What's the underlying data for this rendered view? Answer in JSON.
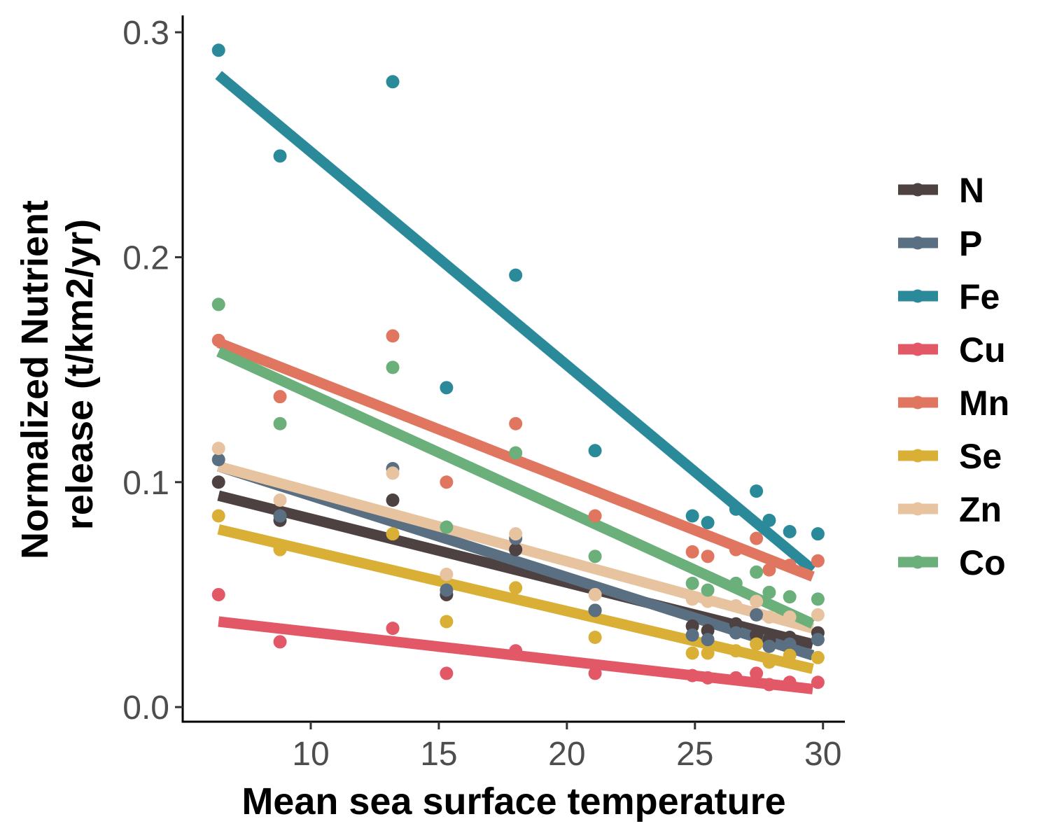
{
  "chart_data": {
    "type": "scatter",
    "xlabel": "Mean sea surface temperature",
    "ylabel_lines": [
      "Normalized Nutrient",
      "release (t/km2/yr)"
    ],
    "xlim": [
      5.0,
      30.8
    ],
    "ylim": [
      -0.0065,
      0.3075
    ],
    "xticks": [
      10,
      15,
      20,
      25,
      30
    ],
    "yticks": [
      0.0,
      0.1,
      0.2,
      0.3
    ],
    "xtick_labels": [
      "10",
      "15",
      "20",
      "25",
      "30"
    ],
    "ytick_labels": [
      "0.0",
      "0.1",
      "0.2",
      "0.3"
    ],
    "grid": false,
    "legend_position": "right",
    "x": [
      6.4,
      8.8,
      13.2,
      15.3,
      18.0,
      21.1,
      24.9,
      25.5,
      26.6,
      27.4,
      27.9,
      28.7,
      29.8
    ],
    "series": [
      {
        "name": "N",
        "color": "#4d4141",
        "y": [
          0.1,
          0.083,
          0.092,
          0.05,
          0.07,
          0.043,
          0.036,
          0.034,
          0.037,
          0.032,
          0.03,
          0.031,
          0.033
        ],
        "fit": [
          [
            6.4,
            0.094
          ],
          [
            29.6,
            0.028
          ]
        ]
      },
      {
        "name": "P",
        "color": "#5a6f82",
        "y": [
          0.11,
          0.085,
          0.106,
          0.052,
          0.075,
          0.043,
          0.032,
          0.03,
          0.033,
          0.041,
          0.027,
          0.028,
          0.03
        ],
        "fit": [
          [
            6.4,
            0.107
          ],
          [
            29.6,
            0.023
          ]
        ]
      },
      {
        "name": "Fe",
        "color": "#2a8a99",
        "y": [
          0.292,
          0.245,
          0.278,
          0.142,
          0.192,
          0.114,
          0.085,
          0.082,
          0.088,
          0.096,
          0.083,
          0.078,
          0.077
        ],
        "fit": [
          [
            6.4,
            0.281
          ],
          [
            29.6,
            0.061
          ]
        ]
      },
      {
        "name": "Cu",
        "color": "#e35866",
        "y": [
          0.05,
          0.029,
          0.035,
          0.015,
          0.025,
          0.015,
          0.014,
          0.013,
          0.013,
          0.015,
          0.01,
          0.011,
          0.011
        ],
        "fit": [
          [
            6.4,
            0.038
          ],
          [
            29.6,
            0.008
          ]
        ]
      },
      {
        "name": "Mn",
        "color": "#e07660",
        "y": [
          0.163,
          0.138,
          0.165,
          0.1,
          0.126,
          0.085,
          0.069,
          0.067,
          0.07,
          0.075,
          0.061,
          0.063,
          0.065
        ],
        "fit": [
          [
            6.4,
            0.162
          ],
          [
            29.6,
            0.058
          ]
        ]
      },
      {
        "name": "Se",
        "color": "#d9b035",
        "y": [
          0.085,
          0.07,
          0.077,
          0.038,
          0.053,
          0.031,
          0.024,
          0.024,
          0.025,
          0.028,
          0.02,
          0.023,
          0.022
        ],
        "fit": [
          [
            6.4,
            0.079
          ],
          [
            29.6,
            0.017
          ]
        ]
      },
      {
        "name": "Zn",
        "color": "#e8c3a0",
        "y": [
          0.115,
          0.092,
          0.104,
          0.059,
          0.077,
          0.05,
          0.048,
          0.047,
          0.045,
          0.047,
          0.04,
          0.04,
          0.041
        ],
        "fit": [
          [
            6.4,
            0.107
          ],
          [
            29.6,
            0.035
          ]
        ]
      },
      {
        "name": "Co",
        "color": "#6baf7a",
        "y": [
          0.179,
          0.126,
          0.151,
          0.08,
          0.113,
          0.067,
          0.055,
          0.052,
          0.055,
          0.06,
          0.051,
          0.049,
          0.048
        ],
        "fit": [
          [
            6.4,
            0.158
          ],
          [
            29.6,
            0.037
          ]
        ]
      }
    ]
  }
}
